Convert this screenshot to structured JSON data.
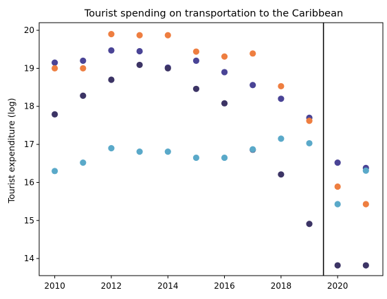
{
  "chart_data": {
    "type": "scatter",
    "title": "Tourist spending on transportation to the Caribbean",
    "xlabel": "",
    "ylabel": "Tourist expenditure (log)",
    "xlim": [
      2009.45,
      2021.6
    ],
    "ylim": [
      13.55,
      20.2
    ],
    "xticks": [
      2010,
      2012,
      2014,
      2016,
      2018,
      2020
    ],
    "yticks": [
      14,
      15,
      16,
      17,
      18,
      19,
      20
    ],
    "grid": false,
    "legend": "none",
    "vertical_line": {
      "x": 2019.5,
      "color": "#000000"
    },
    "series": [
      {
        "color": "#4a4496",
        "x": [
          2010,
          2011,
          2012,
          2013,
          2014,
          2015,
          2016,
          2017,
          2018,
          2019,
          2020,
          2021
        ],
        "y": [
          19.15,
          19.2,
          19.47,
          19.45,
          19.02,
          19.2,
          18.9,
          18.56,
          18.2,
          17.7,
          16.52,
          16.38
        ]
      },
      {
        "color": "#ee7e40",
        "x": [
          2010,
          2011,
          2012,
          2013,
          2014,
          2015,
          2016,
          2017,
          2018,
          2019,
          2020,
          2021
        ],
        "y": [
          19.0,
          19.0,
          19.9,
          19.87,
          19.87,
          19.44,
          19.31,
          19.39,
          18.53,
          17.62,
          15.89,
          15.43
        ]
      },
      {
        "color": "#3c3465",
        "x": [
          2010,
          2011,
          2012,
          2013,
          2014,
          2015,
          2016,
          2017,
          2018,
          2019,
          2020,
          2021
        ],
        "y": [
          17.79,
          18.28,
          18.7,
          19.09,
          19.0,
          18.46,
          18.08,
          16.86,
          16.21,
          14.91,
          13.82,
          13.82
        ]
      },
      {
        "color": "#5aa9c9",
        "x": [
          2010,
          2011,
          2012,
          2013,
          2014,
          2015,
          2016,
          2017,
          2018,
          2019,
          2020,
          2021
        ],
        "y": [
          16.3,
          16.52,
          16.9,
          16.81,
          16.81,
          16.65,
          16.65,
          16.87,
          17.15,
          17.03,
          15.43,
          16.31
        ]
      }
    ]
  }
}
